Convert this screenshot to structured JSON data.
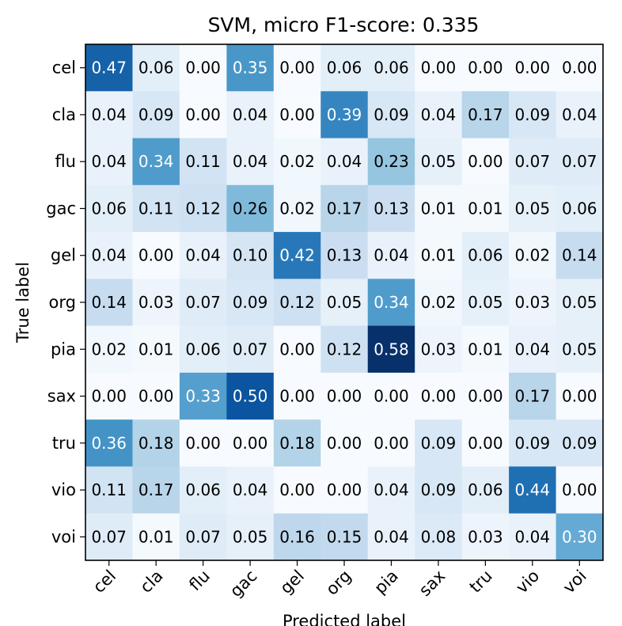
{
  "chart_data": {
    "type": "heatmap",
    "title": "SVM, micro F1-score: 0.335",
    "xlabel": "Predicted label",
    "ylabel": "True label",
    "x_categories": [
      "cel",
      "cla",
      "flu",
      "gac",
      "gel",
      "org",
      "pia",
      "sax",
      "tru",
      "vio",
      "voi"
    ],
    "y_categories": [
      "cel",
      "cla",
      "flu",
      "gac",
      "gel",
      "org",
      "pia",
      "sax",
      "tru",
      "vio",
      "voi"
    ],
    "value_range": [
      0,
      0.58
    ],
    "colormap": "Blues",
    "values": [
      [
        0.47,
        0.06,
        0.0,
        0.35,
        0.0,
        0.06,
        0.06,
        0.0,
        0.0,
        0.0,
        0.0
      ],
      [
        0.04,
        0.09,
        0.0,
        0.04,
        0.0,
        0.39,
        0.09,
        0.04,
        0.17,
        0.09,
        0.04
      ],
      [
        0.04,
        0.34,
        0.11,
        0.04,
        0.02,
        0.04,
        0.23,
        0.05,
        0.0,
        0.07,
        0.07
      ],
      [
        0.06,
        0.11,
        0.12,
        0.26,
        0.02,
        0.17,
        0.13,
        0.01,
        0.01,
        0.05,
        0.06
      ],
      [
        0.04,
        0.0,
        0.04,
        0.1,
        0.42,
        0.13,
        0.04,
        0.01,
        0.06,
        0.02,
        0.14
      ],
      [
        0.14,
        0.03,
        0.07,
        0.09,
        0.12,
        0.05,
        0.34,
        0.02,
        0.05,
        0.03,
        0.05
      ],
      [
        0.02,
        0.01,
        0.06,
        0.07,
        0.0,
        0.12,
        0.58,
        0.03,
        0.01,
        0.04,
        0.05
      ],
      [
        0.0,
        0.0,
        0.33,
        0.5,
        0.0,
        0.0,
        0.0,
        0.0,
        0.0,
        0.17,
        0.0
      ],
      [
        0.36,
        0.18,
        0.0,
        0.0,
        0.18,
        0.0,
        0.0,
        0.09,
        0.0,
        0.09,
        0.09
      ],
      [
        0.11,
        0.17,
        0.06,
        0.04,
        0.0,
        0.0,
        0.04,
        0.09,
        0.06,
        0.44,
        0.0
      ],
      [
        0.07,
        0.01,
        0.07,
        0.05,
        0.16,
        0.15,
        0.04,
        0.08,
        0.03,
        0.04,
        0.3
      ]
    ]
  }
}
